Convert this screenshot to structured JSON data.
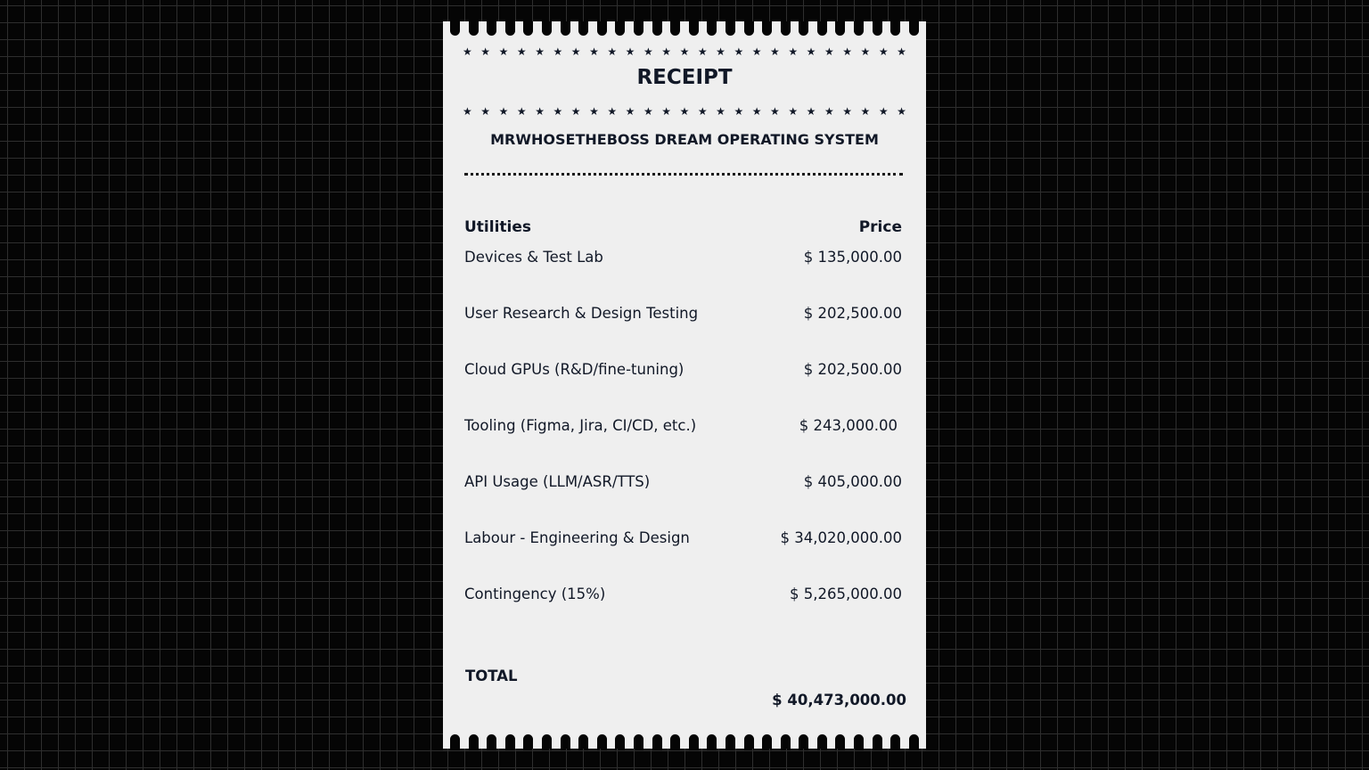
{
  "receipt": {
    "title": "RECEIPT",
    "company": "MRWHOSETHEBOSS DREAM OPERATING SYSTEM",
    "header": {
      "item": "Utilities",
      "price": "Price"
    },
    "items": [
      {
        "label": "Devices & Test Lab",
        "price": "$ 135,000.00"
      },
      {
        "label": "User Research & Design Testing",
        "price": "$ 202,500.00"
      },
      {
        "label": "Cloud GPUs (R&D/fine-tuning)",
        "price": "$ 202,500.00"
      },
      {
        "label": "Tooling (Figma, Jira, CI/CD, etc.)",
        "price": "$ 243,000.00"
      },
      {
        "label": "API Usage (LLM/ASR/TTS)",
        "price": "$ 405,000.00"
      },
      {
        "label": "Labour - Engineering & Design",
        "price": "$ 34,020,000.00"
      },
      {
        "label": "Contingency (15%)",
        "price": "$ 5,265,000.00"
      }
    ],
    "total_label": "TOTAL",
    "total_value": "$ 40,473,000.00"
  }
}
